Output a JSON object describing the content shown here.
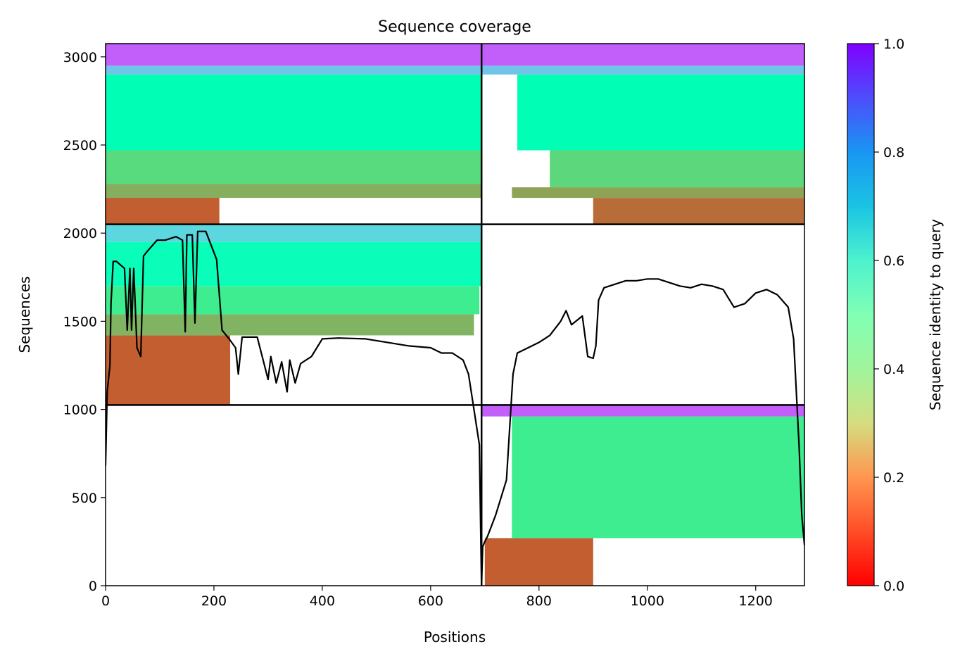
{
  "chart_data": {
    "type": "heatmap",
    "title": "Sequence coverage",
    "xlabel": "Positions",
    "ylabel": "Sequences",
    "xlim": [
      0,
      1290
    ],
    "ylim": [
      0,
      3075
    ],
    "x_ticks": [
      0,
      200,
      400,
      600,
      800,
      1000,
      1200
    ],
    "y_ticks": [
      0,
      500,
      1000,
      1500,
      2000,
      2500,
      3000
    ],
    "grid": false,
    "colormap": "rainbow_r",
    "colorbar": {
      "label": "Sequence identity to query",
      "range": [
        0.0,
        1.0
      ],
      "ticks": [
        0.0,
        0.2,
        0.4,
        0.6,
        0.8,
        1.0
      ],
      "tick_labels": [
        "0.0",
        "0.2",
        "0.4",
        "0.6",
        "0.8",
        "1.0"
      ]
    },
    "domain_boundaries": {
      "x": [
        694
      ],
      "y": [
        1025,
        2050
      ]
    },
    "blocks": [
      {
        "name": "block-top-left",
        "x": [
          0,
          694
        ],
        "rows": [
          2050,
          3075
        ],
        "bands": [
          {
            "y": [
              2050,
              2250
            ],
            "x": [
              0,
              210
            ],
            "identity": 0.12
          },
          {
            "y": [
              2200,
              2280
            ],
            "x": [
              0,
              694
            ],
            "identity": 0.24
          },
          {
            "y": [
              2280,
              2470
            ],
            "x": [
              0,
              694
            ],
            "identity": 0.33
          },
          {
            "y": [
              2470,
              2900
            ],
            "x": [
              0,
              694
            ],
            "identity": 0.5
          },
          {
            "y": [
              2900,
              2950
            ],
            "x": [
              0,
              694
            ],
            "identity": 0.72
          },
          {
            "y": [
              2950,
              3075
            ],
            "x": [
              0,
              694
            ],
            "identity": 0.88
          }
        ]
      },
      {
        "name": "block-top-right",
        "x": [
          694,
          1290
        ],
        "rows": [
          2050,
          3075
        ],
        "bands": [
          {
            "y": [
              2050,
              2200
            ],
            "x": [
              900,
              1290
            ],
            "identity": 0.14
          },
          {
            "y": [
              2200,
              2260
            ],
            "x": [
              750,
              1290
            ],
            "identity": 0.22
          },
          {
            "y": [
              2260,
              2470
            ],
            "x": [
              820,
              1290
            ],
            "identity": 0.32
          },
          {
            "y": [
              2470,
              2900
            ],
            "x": [
              760,
              1290
            ],
            "identity": 0.5
          },
          {
            "y": [
              2900,
              2950
            ],
            "x": [
              694,
              1290
            ],
            "identity": 0.72
          },
          {
            "y": [
              2950,
              3075
            ],
            "x": [
              694,
              1290
            ],
            "identity": 0.88
          }
        ]
      },
      {
        "name": "block-middle-left",
        "x": [
          0,
          694
        ],
        "rows": [
          1025,
          2050
        ],
        "bands": [
          {
            "y": [
              1025,
              1420
            ],
            "x": [
              0,
              230
            ],
            "identity": 0.12
          },
          {
            "y": [
              1420,
              1540
            ],
            "x": [
              0,
              680
            ],
            "identity": 0.25
          },
          {
            "y": [
              1540,
              1700
            ],
            "x": [
              0,
              690
            ],
            "identity": 0.38
          },
          {
            "y": [
              1700,
              1950
            ],
            "x": [
              0,
              694
            ],
            "identity": 0.52
          },
          {
            "y": [
              1950,
              2050
            ],
            "x": [
              0,
              694
            ],
            "identity": 0.68
          }
        ]
      },
      {
        "name": "block-bottom-right",
        "x": [
          694,
          1290
        ],
        "rows": [
          0,
          1025
        ],
        "bands": [
          {
            "y": [
              0,
              270
            ],
            "x": [
              700,
              900
            ],
            "identity": 0.12
          },
          {
            "y": [
              270,
              960
            ],
            "x": [
              750,
              1290
            ],
            "identity": 0.38
          },
          {
            "y": [
              960,
              1025
            ],
            "x": [
              694,
              1290
            ],
            "identity": 0.88
          }
        ]
      }
    ],
    "coverage_line": {
      "x": [
        0,
        3,
        8,
        10,
        14,
        20,
        35,
        40,
        45,
        48,
        52,
        58,
        65,
        70,
        78,
        95,
        110,
        130,
        142,
        147,
        150,
        160,
        165,
        170,
        185,
        205,
        215,
        228,
        240,
        245,
        252,
        280,
        300,
        305,
        315,
        325,
        335,
        340,
        350,
        360,
        380,
        400,
        430,
        480,
        520,
        540,
        560,
        600,
        620,
        640,
        660,
        670,
        680,
        690,
        694,
        696,
        700,
        705,
        720,
        740,
        752,
        760,
        780,
        800,
        820,
        840,
        850,
        860,
        880,
        890,
        900,
        905,
        910,
        920,
        940,
        960,
        980,
        1000,
        1020,
        1040,
        1060,
        1080,
        1100,
        1120,
        1140,
        1160,
        1180,
        1200,
        1220,
        1240,
        1260,
        1270,
        1280,
        1285,
        1290
      ],
      "y": [
        680,
        1100,
        1250,
        1600,
        1840,
        1840,
        1800,
        1450,
        1800,
        1450,
        1800,
        1350,
        1300,
        1870,
        1900,
        1960,
        1960,
        1980,
        1960,
        1440,
        1990,
        1990,
        1490,
        2010,
        2010,
        1850,
        1450,
        1400,
        1350,
        1200,
        1410,
        1410,
        1170,
        1300,
        1150,
        1270,
        1100,
        1280,
        1150,
        1260,
        1300,
        1400,
        1405,
        1400,
        1380,
        1370,
        1360,
        1350,
        1320,
        1320,
        1280,
        1200,
        1000,
        800,
        0,
        220,
        250,
        280,
        400,
        600,
        1200,
        1320,
        1350,
        1380,
        1420,
        1500,
        1560,
        1480,
        1530,
        1300,
        1290,
        1360,
        1620,
        1690,
        1710,
        1730,
        1730,
        1740,
        1740,
        1720,
        1700,
        1690,
        1710,
        1700,
        1680,
        1580,
        1600,
        1660,
        1680,
        1650,
        1580,
        1400,
        800,
        400,
        230
      ]
    }
  }
}
